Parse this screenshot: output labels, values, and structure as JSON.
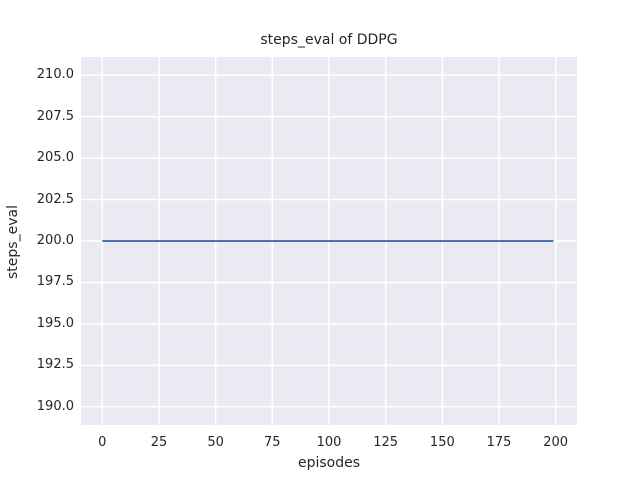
{
  "chart_data": {
    "type": "line",
    "title": "steps_eval of DDPG",
    "xlabel": "episodes",
    "ylabel": "steps_eval",
    "xlim": [
      -9.4,
      209.4
    ],
    "ylim": [
      188.9,
      211.1
    ],
    "xtick_values": [
      0,
      25,
      50,
      75,
      100,
      125,
      150,
      175,
      200
    ],
    "xtick_labels": [
      "0",
      "25",
      "50",
      "75",
      "100",
      "125",
      "150",
      "175",
      "200"
    ],
    "ytick_values": [
      190.0,
      192.5,
      195.0,
      197.5,
      200.0,
      202.5,
      205.0,
      207.5,
      210.0
    ],
    "ytick_labels": [
      "190.0",
      "192.5",
      "195.0",
      "197.5",
      "200.0",
      "202.5",
      "205.0",
      "207.5",
      "210.0"
    ],
    "grid": true,
    "legend": "none",
    "colors": {
      "figure_background": "#ffffff",
      "plot_background": "#eaeaf2",
      "grid": "#ffffff",
      "text": "#262626",
      "line": "#4c72b0"
    },
    "series": [
      {
        "name": "steps_eval of DDPG",
        "color": "#4c72b0",
        "points": [
          [
            0,
            200
          ],
          [
            199,
            200
          ]
        ]
      }
    ]
  }
}
